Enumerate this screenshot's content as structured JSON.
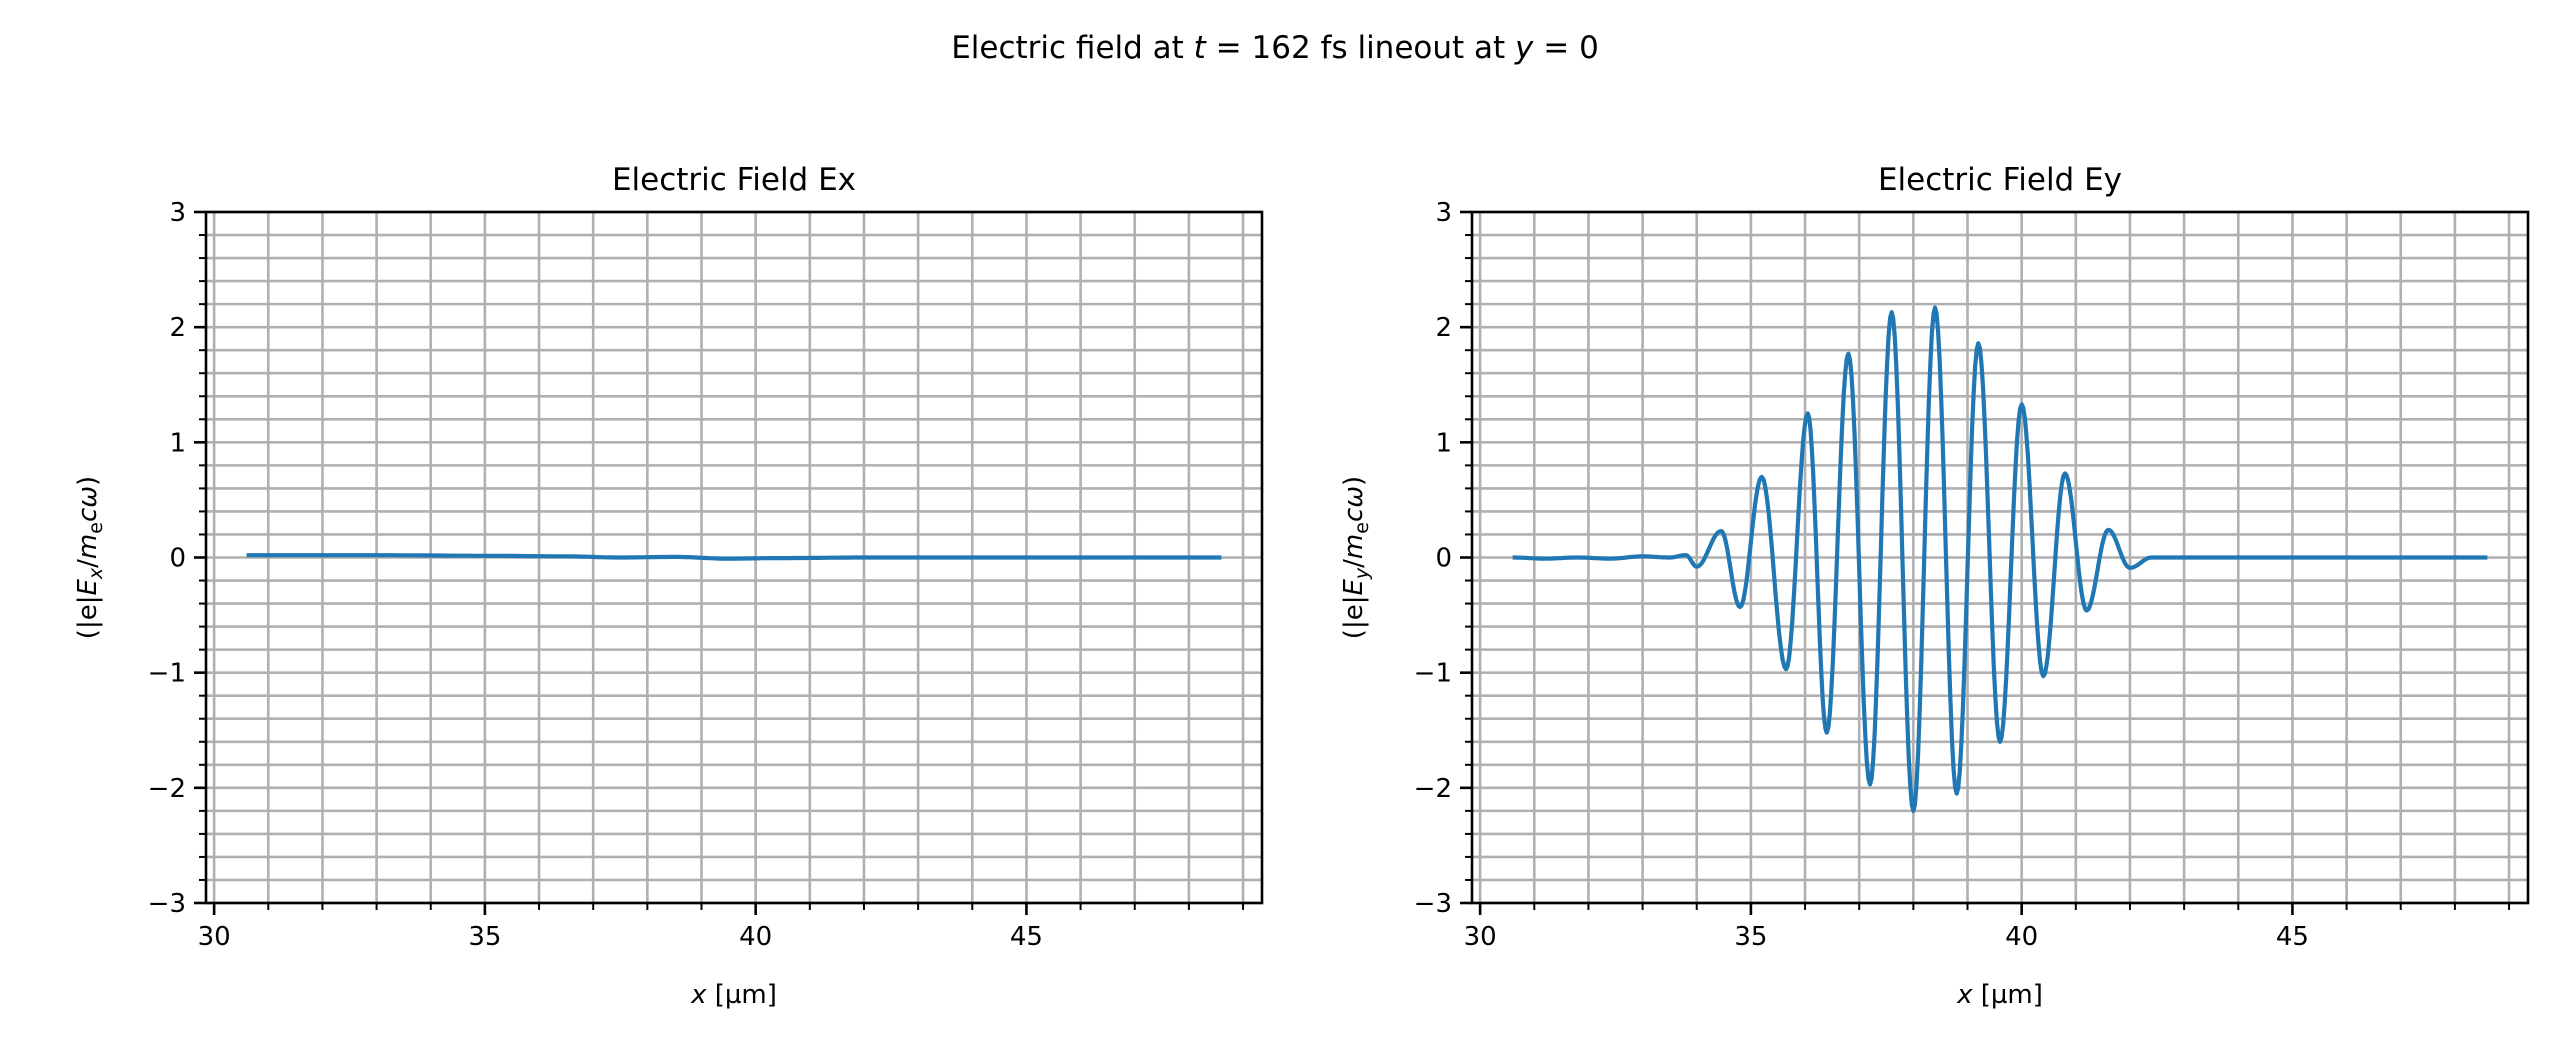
{
  "suptitle_parts": [
    {
      "text": "Electric field at ",
      "italic": false
    },
    {
      "text": "t",
      "italic": true
    },
    {
      "text": " = 162 fs lineout at ",
      "italic": false
    },
    {
      "text": "y",
      "italic": true
    },
    {
      "text": " = 0",
      "italic": false
    }
  ],
  "chart_data": [
    {
      "type": "line",
      "title": "Electric Field Ex",
      "xlabel_parts": [
        {
          "text": "x",
          "italic": true
        },
        {
          "text": " [µm]",
          "italic": false
        }
      ],
      "ylabel_parts": [
        {
          "text": "(|e|",
          "italic": false
        },
        {
          "text": "E",
          "italic": true
        },
        {
          "text": "x",
          "italic": true,
          "sub": true
        },
        {
          "text": "/",
          "italic": false
        },
        {
          "text": "m",
          "italic": true
        },
        {
          "text": "e",
          "italic": false,
          "sub": true
        },
        {
          "text": "cω",
          "italic": true
        },
        {
          "text": ")",
          "italic": false
        }
      ],
      "xlim": [
        29.85,
        49.35
      ],
      "ylim": [
        -3,
        3
      ],
      "xticks": [
        30,
        35,
        40,
        45
      ],
      "yticks": [
        -3,
        -2,
        -1,
        0,
        1,
        2,
        3
      ],
      "ytick_labels": [
        "−3",
        "−2",
        "−1",
        "0",
        "1",
        "2",
        "3"
      ],
      "x_minor_step": 1,
      "y_minor_step": 0.2,
      "grid": "major and minor",
      "color": "#1f77b4",
      "series": [
        {
          "x": [
            30.6,
            33.0,
            35.0,
            36.5,
            37.5,
            38.5,
            39.5,
            40.5,
            42.0,
            45.0,
            48.6
          ],
          "y": [
            0.02,
            0.02,
            0.015,
            0.01,
            0.0,
            0.005,
            -0.01,
            -0.005,
            0.0,
            0.0,
            0.0
          ]
        }
      ]
    },
    {
      "type": "line",
      "title": "Electric Field Ey",
      "xlabel_parts": [
        {
          "text": "x",
          "italic": true
        },
        {
          "text": " [µm]",
          "italic": false
        }
      ],
      "ylabel_parts": [
        {
          "text": "(|e|",
          "italic": false
        },
        {
          "text": "E",
          "italic": true
        },
        {
          "text": "y",
          "italic": true,
          "sub": true
        },
        {
          "text": "/",
          "italic": false
        },
        {
          "text": "m",
          "italic": true
        },
        {
          "text": "e",
          "italic": false,
          "sub": true
        },
        {
          "text": "cω",
          "italic": true
        },
        {
          "text": ")",
          "italic": false
        }
      ],
      "xlim": [
        29.85,
        49.35
      ],
      "ylim": [
        -3,
        3
      ],
      "xticks": [
        30,
        35,
        40,
        45
      ],
      "yticks": [
        -3,
        -2,
        -1,
        0,
        1,
        2,
        3
      ],
      "ytick_labels": [
        "−3",
        "−2",
        "−1",
        "0",
        "1",
        "2",
        "3"
      ],
      "x_minor_step": 1,
      "y_minor_step": 0.2,
      "grid": "major and minor",
      "color": "#1f77b4",
      "series": [
        {
          "x": [
            30.6,
            31.2,
            31.8,
            32.4,
            33.0,
            33.5,
            33.8,
            34.0,
            34.45,
            34.8,
            35.2,
            35.65,
            36.05,
            36.4,
            36.8,
            37.2,
            37.6,
            38.0,
            38.4,
            38.8,
            39.2,
            39.6,
            40.0,
            40.4,
            40.8,
            41.2,
            41.6,
            42.0,
            42.4,
            45.0,
            48.6
          ],
          "y": [
            0.0,
            -0.01,
            0.0,
            -0.01,
            0.01,
            0.0,
            0.02,
            -0.08,
            0.23,
            -0.43,
            0.7,
            -0.97,
            1.25,
            -1.52,
            1.77,
            -1.97,
            2.13,
            -2.2,
            2.17,
            -2.05,
            1.86,
            -1.6,
            1.33,
            -1.03,
            0.73,
            -0.46,
            0.24,
            -0.09,
            0.0,
            0.0,
            0.0
          ]
        }
      ]
    }
  ]
}
